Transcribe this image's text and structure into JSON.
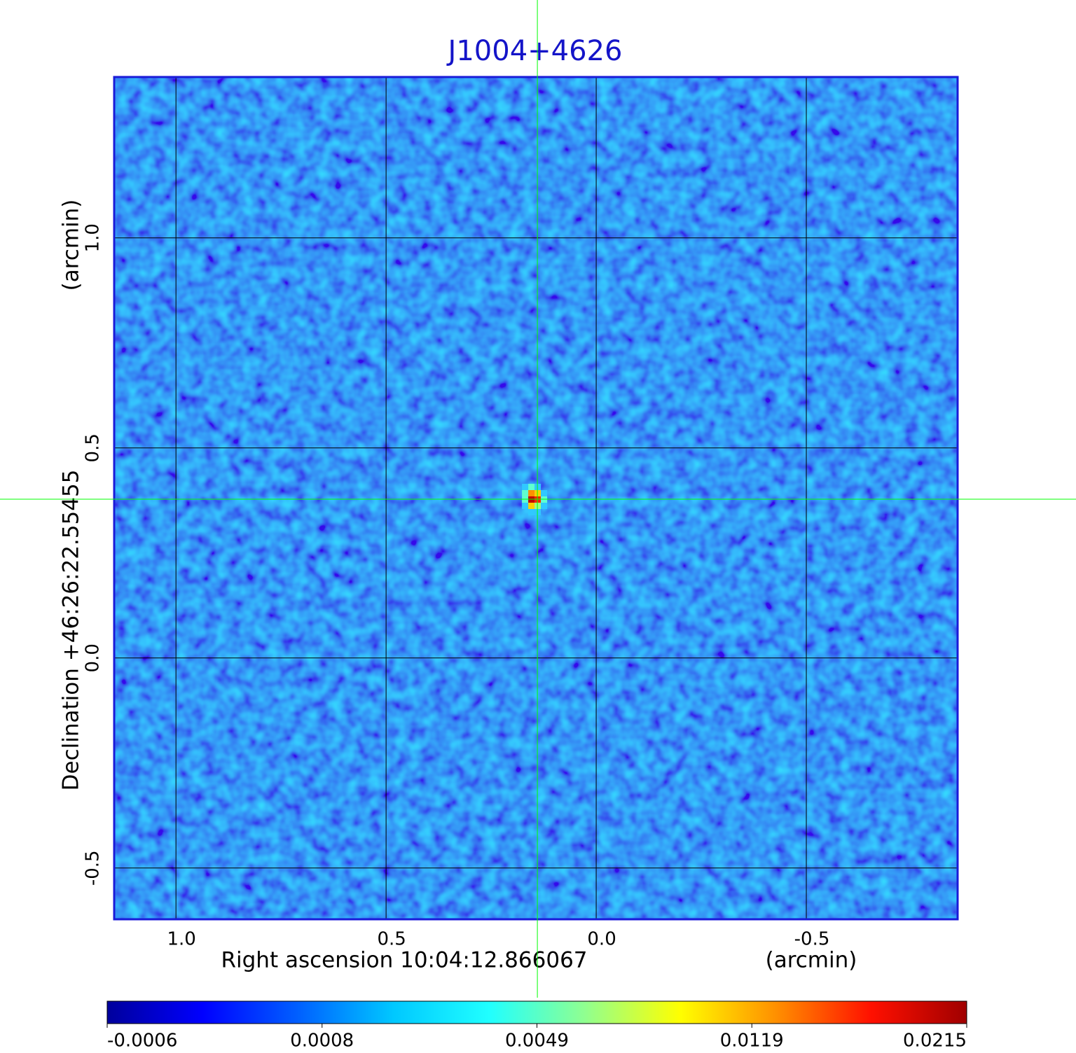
{
  "chart_data": {
    "type": "image",
    "title": "J1004+4626",
    "x_label": "Right ascension  10:04:12.866067",
    "x_unit": "(arcmin)",
    "y_label": "Declination  +46:26:22.55455",
    "y_unit": "(arcmin)",
    "xlim": [
      1.147,
      -0.86
    ],
    "ylim": [
      -0.622,
      1.383
    ],
    "xticks": [
      {
        "value": 1,
        "label": "1.0"
      },
      0.5,
      {
        "value": 0,
        "label": "0.0"
      },
      -0.5
    ],
    "yticks": [
      {
        "value": 1,
        "label": "1.0"
      },
      0.5,
      {
        "value": 0,
        "label": "0.0"
      },
      -0.5
    ],
    "grid": true,
    "crosshair": {
      "x": 0.14,
      "y": 0.378,
      "color": "#00ff00"
    },
    "colorbar": {
      "ticks": [
        -0.0006,
        0.0008,
        0.0049,
        0.0119,
        0.0215
      ],
      "colormap": [
        "#00009c",
        "#0000ff",
        "#0060ff",
        "#00c8ff",
        "#20ffff",
        "#90ff90",
        "#ffff00",
        "#ff9000",
        "#ff1000",
        "#a00000"
      ]
    }
  }
}
